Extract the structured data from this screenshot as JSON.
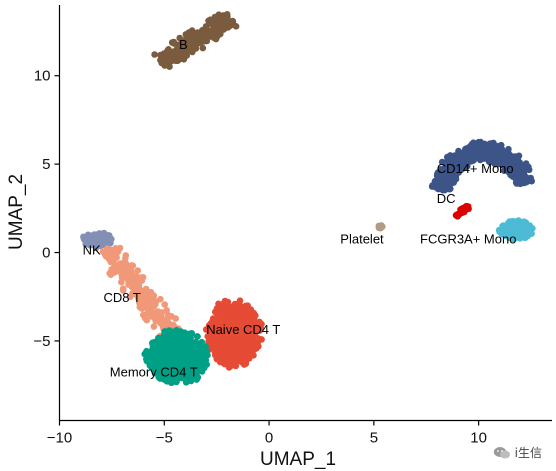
{
  "chart_data": {
    "type": "scatter",
    "title": "",
    "xlabel": "UMAP_1",
    "ylabel": "UMAP_2",
    "xlim": [
      -10,
      13.5
    ],
    "ylim": [
      -9.5,
      14
    ],
    "xticks": [
      -10,
      -5,
      0,
      5,
      10
    ],
    "yticks": [
      -5,
      0,
      5,
      10
    ],
    "grid": false,
    "legend": "none",
    "series": [
      {
        "name": "B",
        "color": "#7b5b3e",
        "shape": "band",
        "p1": [
          -5.2,
          10.8
        ],
        "p2": [
          -1.8,
          13.2
        ],
        "half_width": 0.55,
        "n": 300,
        "label_pos": [
          -4.3,
          11.5
        ]
      },
      {
        "name": "NK",
        "color": "#8390b6",
        "shape": "blob",
        "center": [
          -8.2,
          0.7
        ],
        "radius": [
          0.8,
          0.45
        ],
        "n": 110,
        "label_pos": [
          -8.9,
          -0.1
        ]
      },
      {
        "name": "CD8 T",
        "color": "#f19879",
        "shape": "band",
        "p1": [
          -7.8,
          0.2
        ],
        "p2": [
          -4.6,
          -4.6
        ],
        "half_width": 0.6,
        "n": 230,
        "label_pos": [
          -7.9,
          -2.8
        ]
      },
      {
        "name": "Naive CD4 T",
        "color": "#e64b35",
        "shape": "blob",
        "center": [
          -1.7,
          -4.6
        ],
        "radius": [
          1.4,
          2.0
        ],
        "n": 650,
        "label_pos": [
          -3.0,
          -4.6
        ]
      },
      {
        "name": "Memory CD4 T",
        "color": "#00a087",
        "shape": "blob",
        "center": [
          -4.4,
          -5.9
        ],
        "radius": [
          1.6,
          1.6
        ],
        "n": 620,
        "label_pos": [
          -7.6,
          -7.0
        ]
      },
      {
        "name": "Platelet",
        "color": "#b09c85",
        "shape": "blob",
        "center": [
          5.3,
          1.45
        ],
        "radius": [
          0.12,
          0.1
        ],
        "n": 8,
        "label_pos": [
          3.4,
          0.5
        ]
      },
      {
        "name": "CD14+ Mono",
        "color": "#3c5488",
        "shape": "arc",
        "arc_center": [
          10.2,
          3.3
        ],
        "arc_radius": [
          2.0,
          2.4
        ],
        "arc_span": [
          15,
          175
        ],
        "half_width": 0.55,
        "n": 600,
        "label_pos": [
          8.0,
          4.5
        ]
      },
      {
        "name": "DC",
        "color": "#dc0000",
        "shape": "band",
        "p1": [
          8.9,
          2.1
        ],
        "p2": [
          9.6,
          2.7
        ],
        "half_width": 0.12,
        "n": 25,
        "label_pos": [
          8.0,
          2.8
        ]
      },
      {
        "name": "FCGR3A+ Mono",
        "color": "#4dbbd5",
        "shape": "blob",
        "center": [
          11.8,
          1.3
        ],
        "radius": [
          0.9,
          0.6
        ],
        "n": 170,
        "label_pos": [
          7.2,
          0.5
        ]
      }
    ]
  },
  "watermark": {
    "text": "i生信",
    "icon": "wechat-icon"
  }
}
